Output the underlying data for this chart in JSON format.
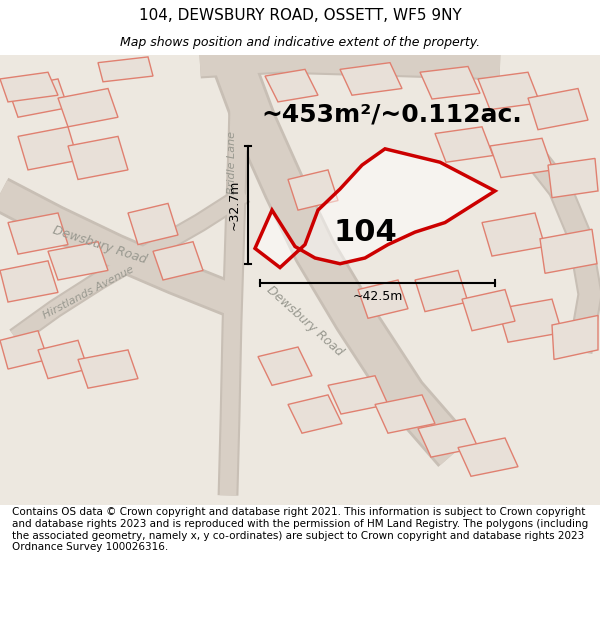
{
  "title": "104, DEWSBURY ROAD, OSSETT, WF5 9NY",
  "subtitle": "Map shows position and indicative extent of the property.",
  "area_text": "~453m²/~0.112ac.",
  "label_104": "104",
  "dim1_label": "~32.7m",
  "dim2_label": "~42.5m",
  "footer": "Contains OS data © Crown copyright and database right 2021. This information is subject to Crown copyright and database rights 2023 and is reproduced with the permission of HM Land Registry. The polygons (including the associated geometry, namely x, y co-ordinates) are subject to Crown copyright and database rights 2023 Ordnance Survey 100026316.",
  "bg_color": "#ede8e0",
  "plot_line_color": "#cc0000",
  "title_fontsize": 11,
  "subtitle_fontsize": 9,
  "footer_fontsize": 7.5,
  "area_fontsize": 18,
  "label_fontsize": 22,
  "road_label_color": "#999990",
  "dim_fontsize": 9
}
